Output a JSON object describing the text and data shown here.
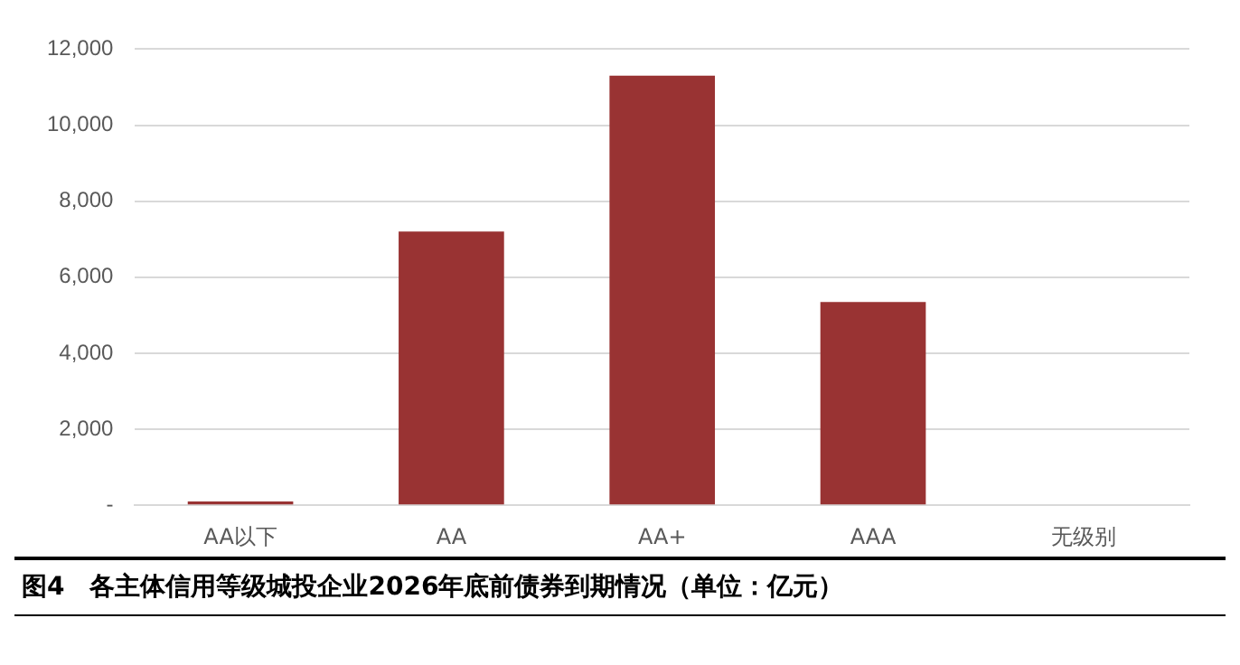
{
  "chart_data": {
    "type": "bar",
    "title": "图4　各主体信用等级城投企业2026年底前债券到期情况（单位：亿元）",
    "categories": [
      "AA以下",
      "AA",
      "AA+",
      "AAA",
      "无级别"
    ],
    "values": [
      100,
      7200,
      11300,
      5350,
      0
    ],
    "color": "#993333",
    "ylim": [
      0,
      12000
    ],
    "yticks": [
      {
        "value": 0,
        "label": "-"
      },
      {
        "value": 2000,
        "label": "2,000"
      },
      {
        "value": 4000,
        "label": "4,000"
      },
      {
        "value": 6000,
        "label": "6,000"
      },
      {
        "value": 8000,
        "label": "8,000"
      },
      {
        "value": 10000,
        "label": "10,000"
      },
      {
        "value": 12000,
        "label": "12,000"
      }
    ],
    "grid": "y",
    "legend": false
  }
}
